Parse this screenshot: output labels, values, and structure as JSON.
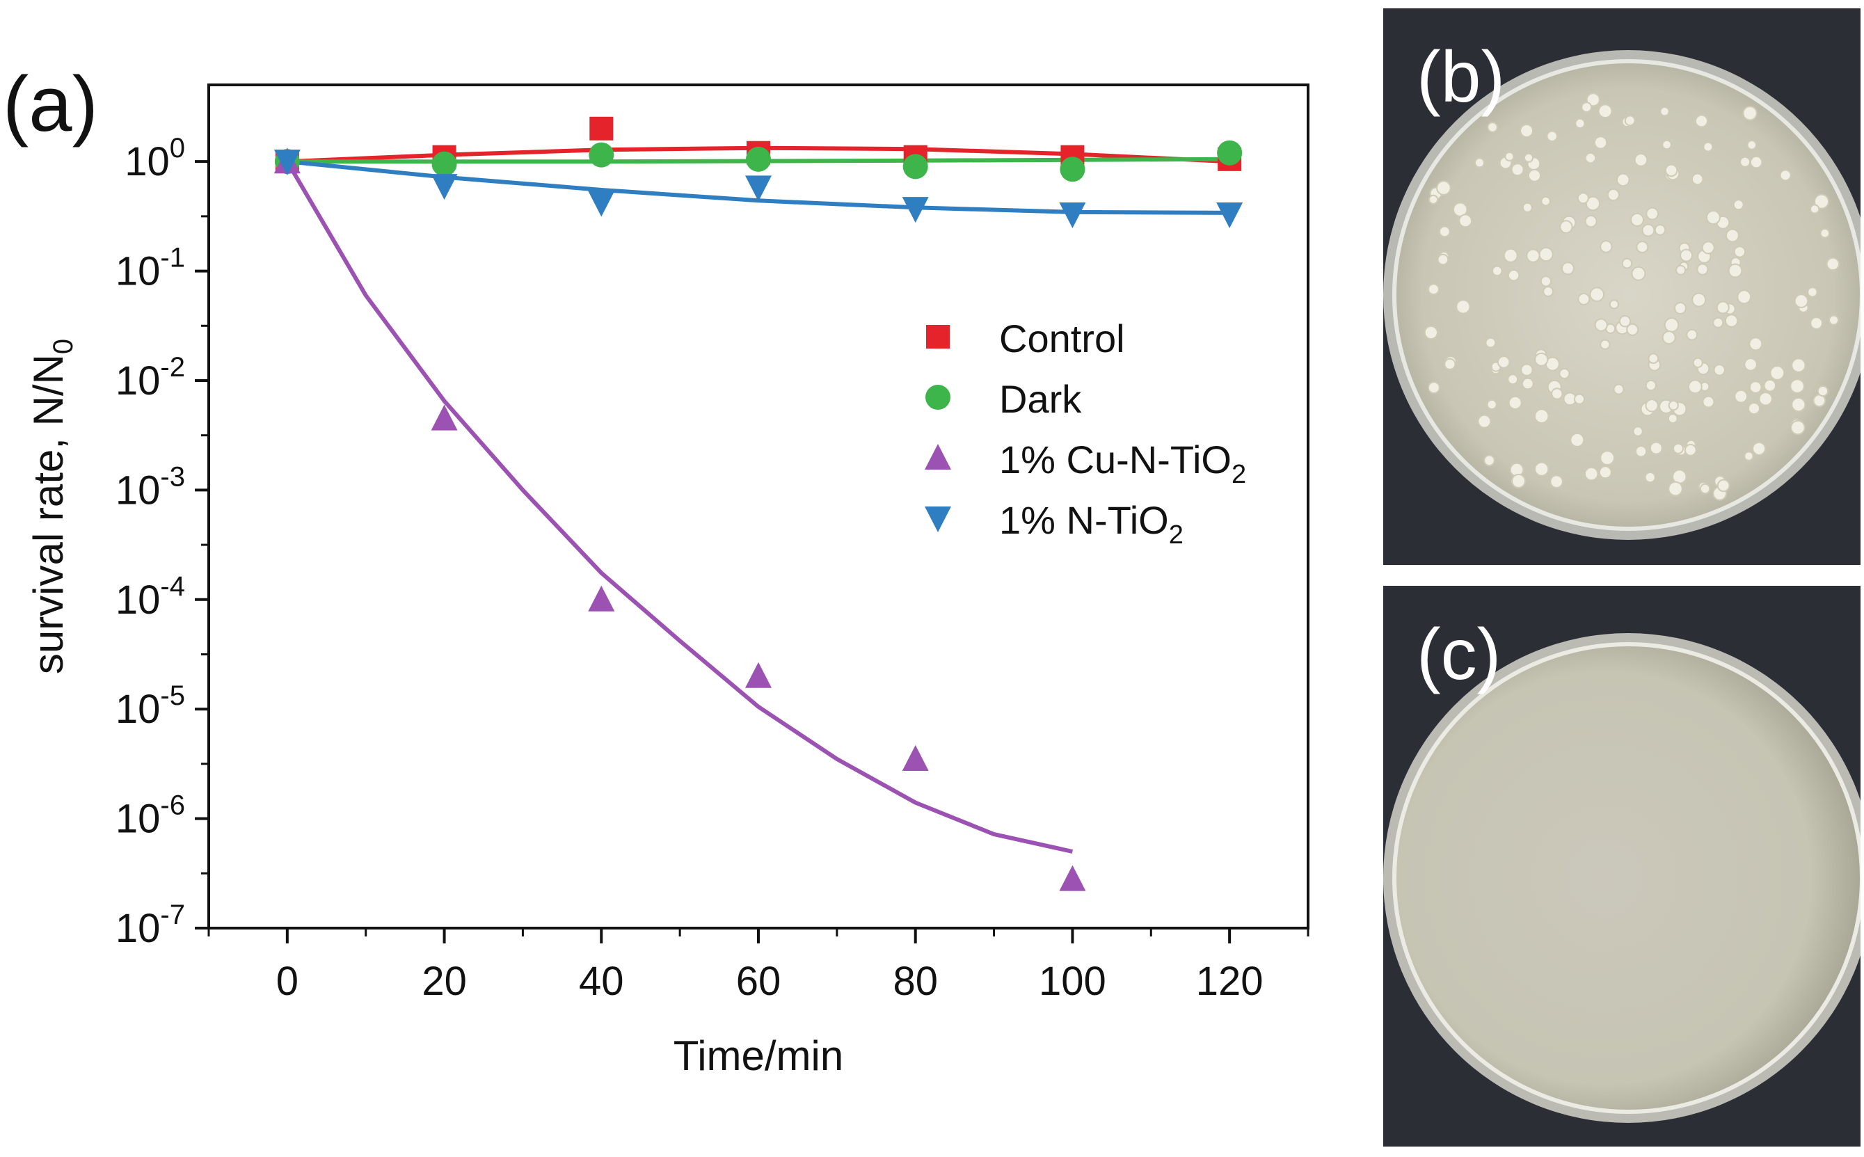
{
  "panels": {
    "a_label": "(a)",
    "b_label": "(b)",
    "c_label": "(c)"
  },
  "chart_data": {
    "type": "scatter",
    "title": "",
    "xlabel": "Time/min",
    "ylabel": "survival rate, N/N",
    "ylabel_sub": "0",
    "y_scale": "log",
    "xlim": [
      -10,
      130
    ],
    "ylim_exp": [
      -7,
      0.7
    ],
    "x_ticks": [
      0,
      20,
      40,
      60,
      80,
      100,
      120
    ],
    "y_ticks_exp": [
      0,
      -1,
      -2,
      -3,
      -4,
      -5,
      -6,
      -7
    ],
    "series": [
      {
        "name": "Control",
        "label_main": "Control",
        "label_sub": "",
        "label_tail": "",
        "color": "#e4232a",
        "marker": "square",
        "points": [
          [
            0,
            1.0
          ],
          [
            20,
            1.1
          ],
          [
            40,
            2.0
          ],
          [
            60,
            1.2
          ],
          [
            80,
            1.1
          ],
          [
            100,
            1.1
          ],
          [
            120,
            1.05
          ]
        ],
        "fit": [
          [
            0,
            1.0
          ],
          [
            20,
            1.15
          ],
          [
            40,
            1.28
          ],
          [
            60,
            1.33
          ],
          [
            80,
            1.3
          ],
          [
            100,
            1.17
          ],
          [
            120,
            1.0
          ]
        ]
      },
      {
        "name": "Dark",
        "label_main": "Dark",
        "label_sub": "",
        "label_tail": "",
        "color": "#3db54a",
        "marker": "circle",
        "points": [
          [
            0,
            1.0
          ],
          [
            20,
            0.95
          ],
          [
            40,
            1.15
          ],
          [
            60,
            1.05
          ],
          [
            80,
            0.9
          ],
          [
            100,
            0.85
          ],
          [
            120,
            1.2
          ]
        ],
        "fit": [
          [
            0,
            1.0
          ],
          [
            40,
            1.0
          ],
          [
            80,
            1.02
          ],
          [
            120,
            1.05
          ]
        ]
      },
      {
        "name": "1% Cu-N-TiO2",
        "label_main": "1% Cu-N-TiO",
        "label_sub": "2",
        "label_tail": "",
        "color": "#9b52b3",
        "marker": "triangle-up",
        "points": [
          [
            0,
            1.0
          ],
          [
            20,
            0.0045
          ],
          [
            40,
            0.0001
          ],
          [
            60,
            2e-05
          ],
          [
            80,
            3.5e-06
          ],
          [
            100,
            2.8e-07
          ]
        ],
        "fit": [
          [
            0,
            1.0
          ],
          [
            10,
            0.06
          ],
          [
            20,
            0.0065
          ],
          [
            30,
            0.001
          ],
          [
            40,
            0.000175
          ],
          [
            50,
            4.2e-05
          ],
          [
            60,
            1.05e-05
          ],
          [
            70,
            3.5e-06
          ],
          [
            80,
            1.4e-06
          ],
          [
            90,
            7.2e-07
          ],
          [
            100,
            5e-07
          ]
        ]
      },
      {
        "name": "1% N-TiO2",
        "label_main": "1% N-TiO",
        "label_sub": "2",
        "label_tail": "",
        "color": "#2f7ec1",
        "marker": "triangle-down",
        "points": [
          [
            0,
            1.0
          ],
          [
            20,
            0.6
          ],
          [
            40,
            0.42
          ],
          [
            60,
            0.58
          ],
          [
            80,
            0.37
          ],
          [
            100,
            0.33
          ],
          [
            120,
            0.33
          ]
        ],
        "fit": [
          [
            0,
            1.0
          ],
          [
            20,
            0.72
          ],
          [
            40,
            0.55
          ],
          [
            60,
            0.44
          ],
          [
            80,
            0.38
          ],
          [
            100,
            0.345
          ],
          [
            120,
            0.34
          ]
        ]
      }
    ],
    "legend_position": "center-right"
  }
}
